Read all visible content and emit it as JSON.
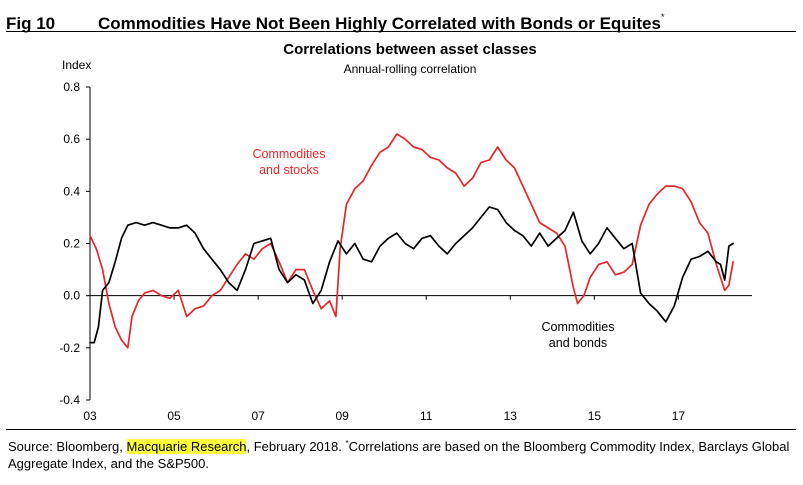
{
  "figure": {
    "number": "Fig 10",
    "title": "Commodities Have Not Been Highly Correlated with Bonds or Equites",
    "title_marker": "*"
  },
  "source": {
    "prefix": "Source: Bloomberg, ",
    "highlight": "Macquarie Research",
    "middle": ", February 2018. ",
    "marker": "*",
    "note": "Correlations are based on the Bloomberg Commodity Index, Barclays Global Aggregate Index, and the S&P500."
  },
  "colors": {
    "stocks": "#e8262a",
    "bonds": "#000000",
    "axis": "#000000",
    "highlight": "#ffff3b"
  },
  "chart_data": {
    "type": "line",
    "title": "Correlations between asset classes",
    "subtitle": "Annual-rolling correlation",
    "ylabel": "Index",
    "xlabel": "",
    "ylim": [
      -0.4,
      0.8
    ],
    "xlim": [
      2003.0,
      2018.75
    ],
    "y_ticks": [
      "0.8",
      "0.6",
      "0.4",
      "0.2",
      "0.0",
      "-0.2",
      "-0.4"
    ],
    "x_ticks": [
      "03",
      "05",
      "07",
      "09",
      "11",
      "13",
      "15",
      "17"
    ],
    "annotations": [
      {
        "text": "Commodities and stocks",
        "lines": [
          "Commodities",
          "and stocks"
        ]
      },
      {
        "text": "Commodities and bonds",
        "lines": [
          "Commodities",
          "and bonds"
        ]
      }
    ],
    "series": [
      {
        "name": "Commodities and stocks",
        "label_lines": [
          "Commodities",
          "and stocks"
        ],
        "color": "#e8262a",
        "x": [
          2003.0,
          2003.15,
          2003.3,
          2003.45,
          2003.6,
          2003.75,
          2003.9,
          2004.0,
          2004.15,
          2004.3,
          2004.5,
          2004.7,
          2004.9,
          2005.1,
          2005.3,
          2005.5,
          2005.7,
          2005.9,
          2006.1,
          2006.3,
          2006.5,
          2006.7,
          2006.9,
          2007.1,
          2007.3,
          2007.5,
          2007.7,
          2007.9,
          2008.1,
          2008.3,
          2008.5,
          2008.7,
          2008.85,
          2008.95,
          2009.1,
          2009.3,
          2009.5,
          2009.7,
          2009.9,
          2010.1,
          2010.3,
          2010.5,
          2010.7,
          2010.9,
          2011.1,
          2011.3,
          2011.5,
          2011.7,
          2011.9,
          2012.1,
          2012.3,
          2012.5,
          2012.7,
          2012.9,
          2013.1,
          2013.3,
          2013.5,
          2013.7,
          2013.9,
          2014.1,
          2014.3,
          2014.5,
          2014.6,
          2014.75,
          2014.9,
          2015.1,
          2015.3,
          2015.5,
          2015.7,
          2015.9,
          2016.1,
          2016.3,
          2016.5,
          2016.7,
          2016.9,
          2017.1,
          2017.3,
          2017.5,
          2017.7,
          2017.9,
          2018.1,
          2018.2,
          2018.3
        ],
        "values": [
          0.23,
          0.18,
          0.1,
          -0.03,
          -0.12,
          -0.17,
          -0.2,
          -0.08,
          -0.02,
          0.01,
          0.02,
          0.0,
          -0.01,
          0.02,
          -0.08,
          -0.05,
          -0.04,
          0.0,
          0.02,
          0.07,
          0.12,
          0.16,
          0.14,
          0.18,
          0.2,
          0.13,
          0.05,
          0.1,
          0.1,
          0.02,
          -0.05,
          -0.02,
          -0.08,
          0.18,
          0.35,
          0.41,
          0.44,
          0.5,
          0.55,
          0.57,
          0.62,
          0.6,
          0.57,
          0.56,
          0.53,
          0.52,
          0.49,
          0.47,
          0.42,
          0.45,
          0.51,
          0.52,
          0.57,
          0.52,
          0.49,
          0.42,
          0.35,
          0.28,
          0.26,
          0.24,
          0.19,
          0.03,
          -0.03,
          0.0,
          0.07,
          0.12,
          0.13,
          0.08,
          0.09,
          0.12,
          0.27,
          0.35,
          0.39,
          0.42,
          0.42,
          0.41,
          0.36,
          0.28,
          0.24,
          0.12,
          0.02,
          0.04,
          0.13
        ]
      },
      {
        "name": "Commodities and bonds",
        "label_lines": [
          "Commodities",
          "and bonds"
        ],
        "color": "#000000",
        "x": [
          2003.0,
          2003.1,
          2003.2,
          2003.3,
          2003.45,
          2003.6,
          2003.75,
          2003.9,
          2004.1,
          2004.3,
          2004.5,
          2004.7,
          2004.9,
          2005.1,
          2005.3,
          2005.5,
          2005.7,
          2005.9,
          2006.1,
          2006.3,
          2006.5,
          2006.7,
          2006.9,
          2007.1,
          2007.3,
          2007.5,
          2007.7,
          2007.9,
          2008.1,
          2008.3,
          2008.5,
          2008.7,
          2008.9,
          2009.1,
          2009.3,
          2009.5,
          2009.7,
          2009.9,
          2010.1,
          2010.3,
          2010.5,
          2010.7,
          2010.9,
          2011.1,
          2011.3,
          2011.5,
          2011.7,
          2011.9,
          2012.1,
          2012.3,
          2012.5,
          2012.7,
          2012.9,
          2013.1,
          2013.3,
          2013.5,
          2013.7,
          2013.9,
          2014.1,
          2014.3,
          2014.5,
          2014.7,
          2014.9,
          2015.1,
          2015.3,
          2015.5,
          2015.7,
          2015.9,
          2016.1,
          2016.3,
          2016.5,
          2016.7,
          2016.9,
          2017.1,
          2017.3,
          2017.5,
          2017.7,
          2017.9,
          2018.0,
          2018.1,
          2018.2,
          2018.3
        ],
        "values": [
          -0.18,
          -0.18,
          -0.12,
          0.02,
          0.05,
          0.13,
          0.22,
          0.27,
          0.28,
          0.27,
          0.28,
          0.27,
          0.26,
          0.26,
          0.27,
          0.24,
          0.18,
          0.14,
          0.1,
          0.05,
          0.02,
          0.1,
          0.2,
          0.21,
          0.22,
          0.1,
          0.05,
          0.08,
          0.06,
          -0.03,
          0.02,
          0.13,
          0.21,
          0.16,
          0.2,
          0.14,
          0.13,
          0.19,
          0.22,
          0.24,
          0.2,
          0.18,
          0.22,
          0.23,
          0.19,
          0.16,
          0.2,
          0.23,
          0.26,
          0.3,
          0.34,
          0.33,
          0.28,
          0.25,
          0.23,
          0.19,
          0.24,
          0.19,
          0.22,
          0.25,
          0.32,
          0.21,
          0.16,
          0.2,
          0.26,
          0.22,
          0.18,
          0.2,
          0.01,
          -0.03,
          -0.06,
          -0.1,
          -0.04,
          0.07,
          0.14,
          0.15,
          0.17,
          0.13,
          0.12,
          0.06,
          0.19,
          0.2
        ]
      }
    ]
  }
}
